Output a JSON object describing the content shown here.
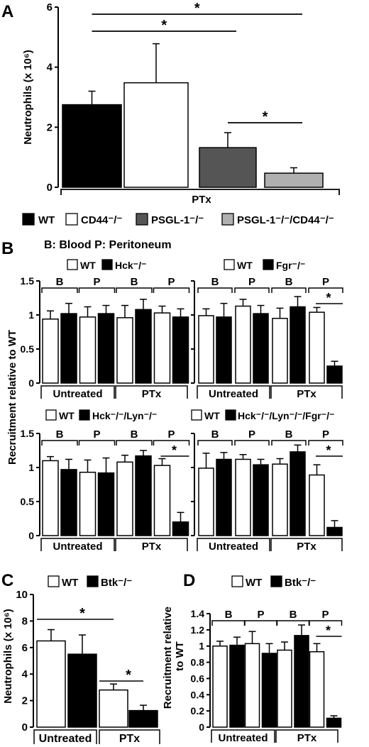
{
  "chart_data": [
    {
      "id": "A",
      "type": "bar",
      "panel_label": "A",
      "ylabel": "Neutrophils (x 10⁶)",
      "ylim": [
        0,
        6
      ],
      "yticks": [
        "0",
        "2",
        "4",
        "6"
      ],
      "group_labels": [
        "PTx"
      ],
      "series": [
        {
          "name": "WT",
          "color": "#000000",
          "values": [
            2.75
          ],
          "errors": [
            0.45
          ]
        },
        {
          "name": "CD44⁻/⁻",
          "color": "#ffffff",
          "values": [
            3.48
          ],
          "errors": [
            1.3
          ]
        },
        {
          "name": "PSGL-1⁻/⁻",
          "color": "#555555",
          "values": [
            1.32
          ],
          "errors": [
            0.5
          ]
        },
        {
          "name": "PSGL-1⁻/⁻/CD44⁻/⁻",
          "color": "#b0b0b0",
          "values": [
            0.47
          ],
          "errors": [
            0.18
          ]
        }
      ],
      "significance": [
        {
          "bars": [
            0,
            3
          ],
          "text": "*"
        },
        {
          "bars": [
            0,
            2
          ],
          "text": "*"
        },
        {
          "bars": [
            2,
            3
          ],
          "text": "*"
        }
      ]
    },
    {
      "id": "B1",
      "type": "bar",
      "panel_label": "B",
      "note": "B: Blood   P: Peritoneum",
      "ylabel": "Recruitment relative to WT",
      "ylim": [
        0,
        1.5
      ],
      "yticks": [
        "0",
        "0.5",
        "1",
        "1.5"
      ],
      "subgroups": [
        "B",
        "P",
        "B",
        "P"
      ],
      "groups": [
        "Untreated",
        "PTx"
      ],
      "series": [
        {
          "name": "WT",
          "color": "#ffffff",
          "values": [
            0.94,
            0.97,
            0.96,
            1.03
          ],
          "errors": [
            0.12,
            0.15,
            0.18,
            0.1
          ]
        },
        {
          "name": "Hck⁻/⁻",
          "color": "#000000",
          "values": [
            1.02,
            1.02,
            1.08,
            0.97
          ],
          "errors": [
            0.15,
            0.12,
            0.15,
            0.12
          ]
        }
      ],
      "significance": []
    },
    {
      "id": "B2",
      "type": "bar",
      "ylim": [
        0,
        1.5
      ],
      "subgroups": [
        "B",
        "P",
        "B",
        "P"
      ],
      "groups": [
        "Untreated",
        "PTx"
      ],
      "series": [
        {
          "name": "WT",
          "color": "#ffffff",
          "values": [
            0.99,
            1.13,
            0.95,
            1.04
          ],
          "errors": [
            0.1,
            0.1,
            0.15,
            0.07
          ]
        },
        {
          "name": "Fgr⁻/⁻",
          "color": "#000000",
          "values": [
            0.97,
            1.02,
            1.12,
            0.25
          ],
          "errors": [
            0.2,
            0.12,
            0.15,
            0.07
          ]
        }
      ],
      "significance": [
        {
          "subgroup": 3,
          "text": "*"
        }
      ]
    },
    {
      "id": "B3",
      "type": "bar",
      "ylim": [
        0,
        1.5
      ],
      "yticks": [
        "0",
        "0.5",
        "1",
        "1.5"
      ],
      "subgroups": [
        "B",
        "P",
        "B",
        "P"
      ],
      "groups": [
        "Untreated",
        "PTx"
      ],
      "series": [
        {
          "name": "WT",
          "color": "#ffffff",
          "values": [
            1.1,
            0.93,
            1.08,
            1.03
          ],
          "errors": [
            0.06,
            0.18,
            0.1,
            0.1
          ]
        },
        {
          "name": "Hck⁻/⁻/Lyn⁻/⁻",
          "color": "#000000",
          "values": [
            0.97,
            0.92,
            1.17,
            0.2
          ],
          "errors": [
            0.15,
            0.22,
            0.08,
            0.14
          ]
        }
      ],
      "significance": [
        {
          "subgroup": 3,
          "text": "*"
        }
      ]
    },
    {
      "id": "B4",
      "type": "bar",
      "ylim": [
        0,
        1.5
      ],
      "subgroups": [
        "B",
        "P",
        "B",
        "P"
      ],
      "groups": [
        "Untreated",
        "PTx"
      ],
      "series": [
        {
          "name": "WT",
          "color": "#ffffff",
          "values": [
            0.99,
            1.12,
            1.05,
            0.89
          ],
          "errors": [
            0.22,
            0.07,
            0.08,
            0.15
          ]
        },
        {
          "name": "Hck⁻/⁻/Lyn⁻/⁻/Fgr⁻/⁻",
          "color": "#000000",
          "values": [
            1.12,
            1.04,
            1.23,
            0.12
          ],
          "errors": [
            0.1,
            0.08,
            0.1,
            0.1
          ]
        }
      ],
      "significance": [
        {
          "subgroup": 3,
          "text": "*"
        }
      ]
    },
    {
      "id": "C",
      "type": "bar",
      "panel_label": "C",
      "ylabel": "Neutrophils (x 10⁶)",
      "ylim": [
        0,
        10
      ],
      "yticks": [
        "0",
        "2",
        "4",
        "6",
        "8",
        "10"
      ],
      "groups": [
        "Untreated",
        "PTx"
      ],
      "series": [
        {
          "name": "WT",
          "color": "#ffffff",
          "values": [
            6.5,
            2.8
          ],
          "errors": [
            0.85,
            0.45
          ]
        },
        {
          "name": "Btk⁻/⁻",
          "color": "#000000",
          "values": [
            5.5,
            1.25
          ],
          "errors": [
            1.45,
            0.4
          ]
        }
      ],
      "significance": [
        {
          "bars": [
            0,
            2
          ],
          "text": "*"
        },
        {
          "bars": [
            2,
            3
          ],
          "text": "*"
        }
      ]
    },
    {
      "id": "D",
      "type": "bar",
      "panel_label": "D",
      "ylabel": "Recruitment relative to WT",
      "ylim": [
        0,
        1.4
      ],
      "yticks": [
        "0",
        "0.2",
        "0.4",
        "0.6",
        "0.8",
        "1",
        "1.2",
        "1.4"
      ],
      "subgroups": [
        "B",
        "P",
        "B",
        "P"
      ],
      "groups": [
        "Untreated",
        "PTx"
      ],
      "series": [
        {
          "name": "WT",
          "color": "#ffffff",
          "values": [
            1.0,
            1.03,
            0.95,
            0.93
          ],
          "errors": [
            0.06,
            0.15,
            0.1,
            0.1
          ]
        },
        {
          "name": "Btk⁻/⁻",
          "color": "#000000",
          "values": [
            1.01,
            0.91,
            1.13,
            0.11
          ],
          "errors": [
            0.1,
            0.12,
            0.13,
            0.03
          ]
        }
      ],
      "significance": [
        {
          "subgroup": 3,
          "text": "*"
        }
      ]
    }
  ]
}
